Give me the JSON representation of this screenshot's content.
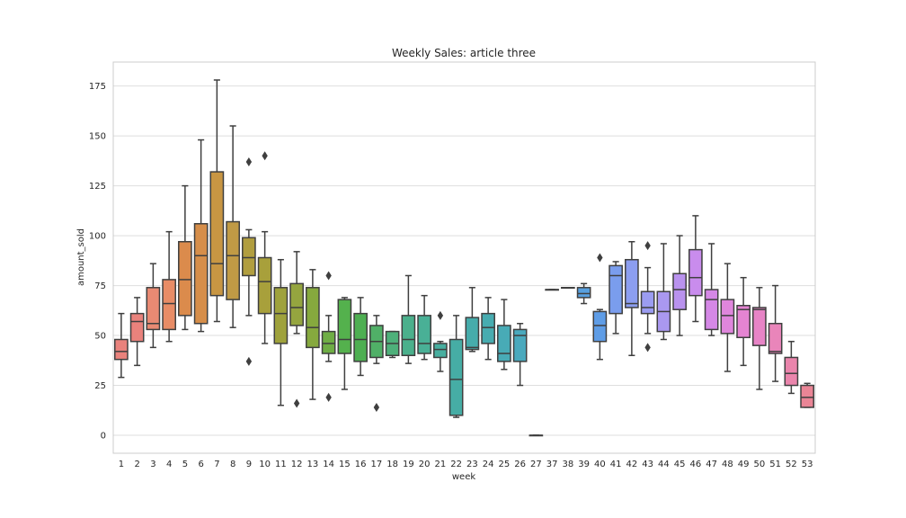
{
  "chart_data": {
    "type": "box",
    "title": "Weekly Sales: article three",
    "xlabel": "week",
    "ylabel": "amount_sold",
    "ylim": [
      -9,
      187
    ],
    "yticks": [
      0,
      25,
      50,
      75,
      100,
      125,
      150,
      175
    ],
    "grid": true,
    "categories": [
      "1",
      "2",
      "3",
      "4",
      "5",
      "6",
      "7",
      "8",
      "9",
      "10",
      "11",
      "12",
      "13",
      "14",
      "15",
      "16",
      "17",
      "18",
      "19",
      "20",
      "21",
      "22",
      "23",
      "24",
      "25",
      "26",
      "27",
      "37",
      "38",
      "39",
      "40",
      "41",
      "42",
      "43",
      "44",
      "45",
      "46",
      "47",
      "48",
      "49",
      "50",
      "51",
      "52",
      "53"
    ],
    "series": [
      {
        "week": "1",
        "color": "#e9827c",
        "whisker_low": 29,
        "q1": 38,
        "median": 42,
        "q3": 48,
        "whisker_high": 61,
        "outliers": []
      },
      {
        "week": "2",
        "color": "#e9827c",
        "whisker_low": 35,
        "q1": 47,
        "median": 57,
        "q3": 61,
        "whisker_high": 69,
        "outliers": []
      },
      {
        "week": "3",
        "color": "#e98a73",
        "whisker_low": 44,
        "q1": 53,
        "median": 56,
        "q3": 74,
        "whisker_high": 86,
        "outliers": []
      },
      {
        "week": "4",
        "color": "#e88c66",
        "whisker_low": 47,
        "q1": 53,
        "median": 66,
        "q3": 78,
        "whisker_high": 102,
        "outliers": []
      },
      {
        "week": "5",
        "color": "#db8b4c",
        "whisker_low": 53,
        "q1": 60,
        "median": 78,
        "q3": 97,
        "whisker_high": 125,
        "outliers": []
      },
      {
        "week": "6",
        "color": "#d68e4a",
        "whisker_low": 52,
        "q1": 56,
        "median": 90,
        "q3": 106,
        "whisker_high": 148,
        "outliers": []
      },
      {
        "week": "7",
        "color": "#c89643",
        "whisker_low": 57,
        "q1": 70,
        "median": 86,
        "q3": 132,
        "whisker_high": 178,
        "outliers": []
      },
      {
        "week": "8",
        "color": "#c09a45",
        "whisker_low": 54,
        "q1": 68,
        "median": 90,
        "q3": 107,
        "whisker_high": 155,
        "outliers": []
      },
      {
        "week": "9",
        "color": "#b19e3f",
        "whisker_low": 60,
        "q1": 80,
        "median": 89,
        "q3": 99,
        "whisker_high": 103,
        "outliers": [
          137,
          37
        ]
      },
      {
        "week": "10",
        "color": "#a8a03b",
        "whisker_low": 46,
        "q1": 61,
        "median": 77,
        "q3": 89,
        "whisker_high": 102,
        "outliers": [
          140
        ]
      },
      {
        "week": "11",
        "color": "#9fa23c",
        "whisker_low": 15,
        "q1": 46,
        "median": 61,
        "q3": 74,
        "whisker_high": 88,
        "outliers": []
      },
      {
        "week": "12",
        "color": "#95a53f",
        "whisker_low": 51,
        "q1": 55,
        "median": 64,
        "q3": 76,
        "whisker_high": 92,
        "outliers": [
          16
        ]
      },
      {
        "week": "13",
        "color": "#86a93e",
        "whisker_low": 18,
        "q1": 44,
        "median": 54,
        "q3": 74,
        "whisker_high": 83,
        "outliers": []
      },
      {
        "week": "14",
        "color": "#6fae45",
        "whisker_low": 37,
        "q1": 41,
        "median": 46,
        "q3": 52,
        "whisker_high": 60,
        "outliers": [
          80,
          19
        ]
      },
      {
        "week": "15",
        "color": "#54b14d",
        "whisker_low": 23,
        "q1": 41,
        "median": 48,
        "q3": 68,
        "whisker_high": 69,
        "outliers": []
      },
      {
        "week": "16",
        "color": "#4eaf52",
        "whisker_low": 30,
        "q1": 37,
        "median": 48,
        "q3": 61,
        "whisker_high": 69,
        "outliers": []
      },
      {
        "week": "17",
        "color": "#50b067",
        "whisker_low": 36,
        "q1": 39,
        "median": 47,
        "q3": 55,
        "whisker_high": 60,
        "outliers": [
          14
        ]
      },
      {
        "week": "18",
        "color": "#4eb07a",
        "whisker_low": 39,
        "q1": 40,
        "median": 46,
        "q3": 52,
        "whisker_high": 52,
        "outliers": []
      },
      {
        "week": "19",
        "color": "#4bb08c",
        "whisker_low": 36,
        "q1": 40,
        "median": 48,
        "q3": 60,
        "whisker_high": 80,
        "outliers": []
      },
      {
        "week": "20",
        "color": "#49b096",
        "whisker_low": 38,
        "q1": 41,
        "median": 46,
        "q3": 60,
        "whisker_high": 70,
        "outliers": []
      },
      {
        "week": "21",
        "color": "#48ae9f",
        "whisker_low": 32,
        "q1": 39,
        "median": 43,
        "q3": 46,
        "whisker_high": 47,
        "outliers": [
          60
        ]
      },
      {
        "week": "22",
        "color": "#46ada5",
        "whisker_low": 9,
        "q1": 10,
        "median": 28,
        "q3": 48,
        "whisker_high": 60,
        "outliers": []
      },
      {
        "week": "23",
        "color": "#46acab",
        "whisker_low": 42,
        "q1": 43,
        "median": 44,
        "q3": 59,
        "whisker_high": 74,
        "outliers": []
      },
      {
        "week": "24",
        "color": "#47acb0",
        "whisker_low": 38,
        "q1": 46,
        "median": 54,
        "q3": 61,
        "whisker_high": 69,
        "outliers": []
      },
      {
        "week": "25",
        "color": "#48abb6",
        "whisker_low": 33,
        "q1": 37,
        "median": 41,
        "q3": 55,
        "whisker_high": 68,
        "outliers": []
      },
      {
        "week": "26",
        "color": "#4aa9bd",
        "whisker_low": 25,
        "q1": 37,
        "median": 50,
        "q3": 53,
        "whisker_high": 56,
        "outliers": []
      },
      {
        "week": "27",
        "color": "#4ca8c4",
        "whisker_low": 0,
        "q1": 0,
        "median": 0,
        "q3": 0,
        "whisker_high": 0,
        "outliers": []
      },
      {
        "week": "37",
        "color": "#4fa6cd",
        "whisker_low": 73,
        "q1": 73,
        "median": 73,
        "q3": 73,
        "whisker_high": 73,
        "outliers": []
      },
      {
        "week": "38",
        "color": "#53a3d7",
        "whisker_low": 74,
        "q1": 74,
        "median": 74,
        "q3": 74,
        "whisker_high": 74,
        "outliers": []
      },
      {
        "week": "39",
        "color": "#58a0df",
        "whisker_low": 66,
        "q1": 69,
        "median": 71,
        "q3": 74,
        "whisker_high": 76,
        "outliers": []
      },
      {
        "week": "40",
        "color": "#5f9de6",
        "whisker_low": 38,
        "q1": 47,
        "median": 55,
        "q3": 62,
        "whisker_high": 63,
        "outliers": [
          89
        ]
      },
      {
        "week": "41",
        "color": "#7a9ded",
        "whisker_low": 51,
        "q1": 61,
        "median": 80,
        "q3": 85,
        "whisker_high": 87,
        "outliers": []
      },
      {
        "week": "42",
        "color": "#8c9ef0",
        "whisker_low": 40,
        "q1": 64,
        "median": 66,
        "q3": 88,
        "whisker_high": 97,
        "outliers": []
      },
      {
        "week": "43",
        "color": "#9b9cf1",
        "whisker_low": 51,
        "q1": 61,
        "median": 64,
        "q3": 72,
        "whisker_high": 84,
        "outliers": [
          95,
          44
        ]
      },
      {
        "week": "44",
        "color": "#aa98f0",
        "whisker_low": 48,
        "q1": 52,
        "median": 62,
        "q3": 72,
        "whisker_high": 96,
        "outliers": []
      },
      {
        "week": "45",
        "color": "#b992ee",
        "whisker_low": 50,
        "q1": 63,
        "median": 73,
        "q3": 81,
        "whisker_high": 100,
        "outliers": []
      },
      {
        "week": "46",
        "color": "#c98ced",
        "whisker_low": 57,
        "q1": 70,
        "median": 79,
        "q3": 93,
        "whisker_high": 110,
        "outliers": []
      },
      {
        "week": "47",
        "color": "#d588e6",
        "whisker_low": 50,
        "q1": 53,
        "median": 68,
        "q3": 73,
        "whisker_high": 96,
        "outliers": []
      },
      {
        "week": "48",
        "color": "#df86dc",
        "whisker_low": 32,
        "q1": 51,
        "median": 60,
        "q3": 68,
        "whisker_high": 86,
        "outliers": []
      },
      {
        "week": "49",
        "color": "#e484d2",
        "whisker_low": 35,
        "q1": 49,
        "median": 63,
        "q3": 65,
        "whisker_high": 79,
        "outliers": []
      },
      {
        "week": "50",
        "color": "#e784c6",
        "whisker_low": 23,
        "q1": 45,
        "median": 63,
        "q3": 64,
        "whisker_high": 74,
        "outliers": []
      },
      {
        "week": "51",
        "color": "#e985ba",
        "whisker_low": 27,
        "q1": 41,
        "median": 42,
        "q3": 56,
        "whisker_high": 75,
        "outliers": []
      },
      {
        "week": "52",
        "color": "#ea85ac",
        "whisker_low": 21,
        "q1": 25,
        "median": 31,
        "q3": 39,
        "whisker_high": 47,
        "outliers": []
      },
      {
        "week": "53",
        "color": "#ea8596",
        "whisker_low": 14,
        "q1": 14,
        "median": 19,
        "q3": 25,
        "whisker_high": 26,
        "outliers": []
      }
    ]
  }
}
